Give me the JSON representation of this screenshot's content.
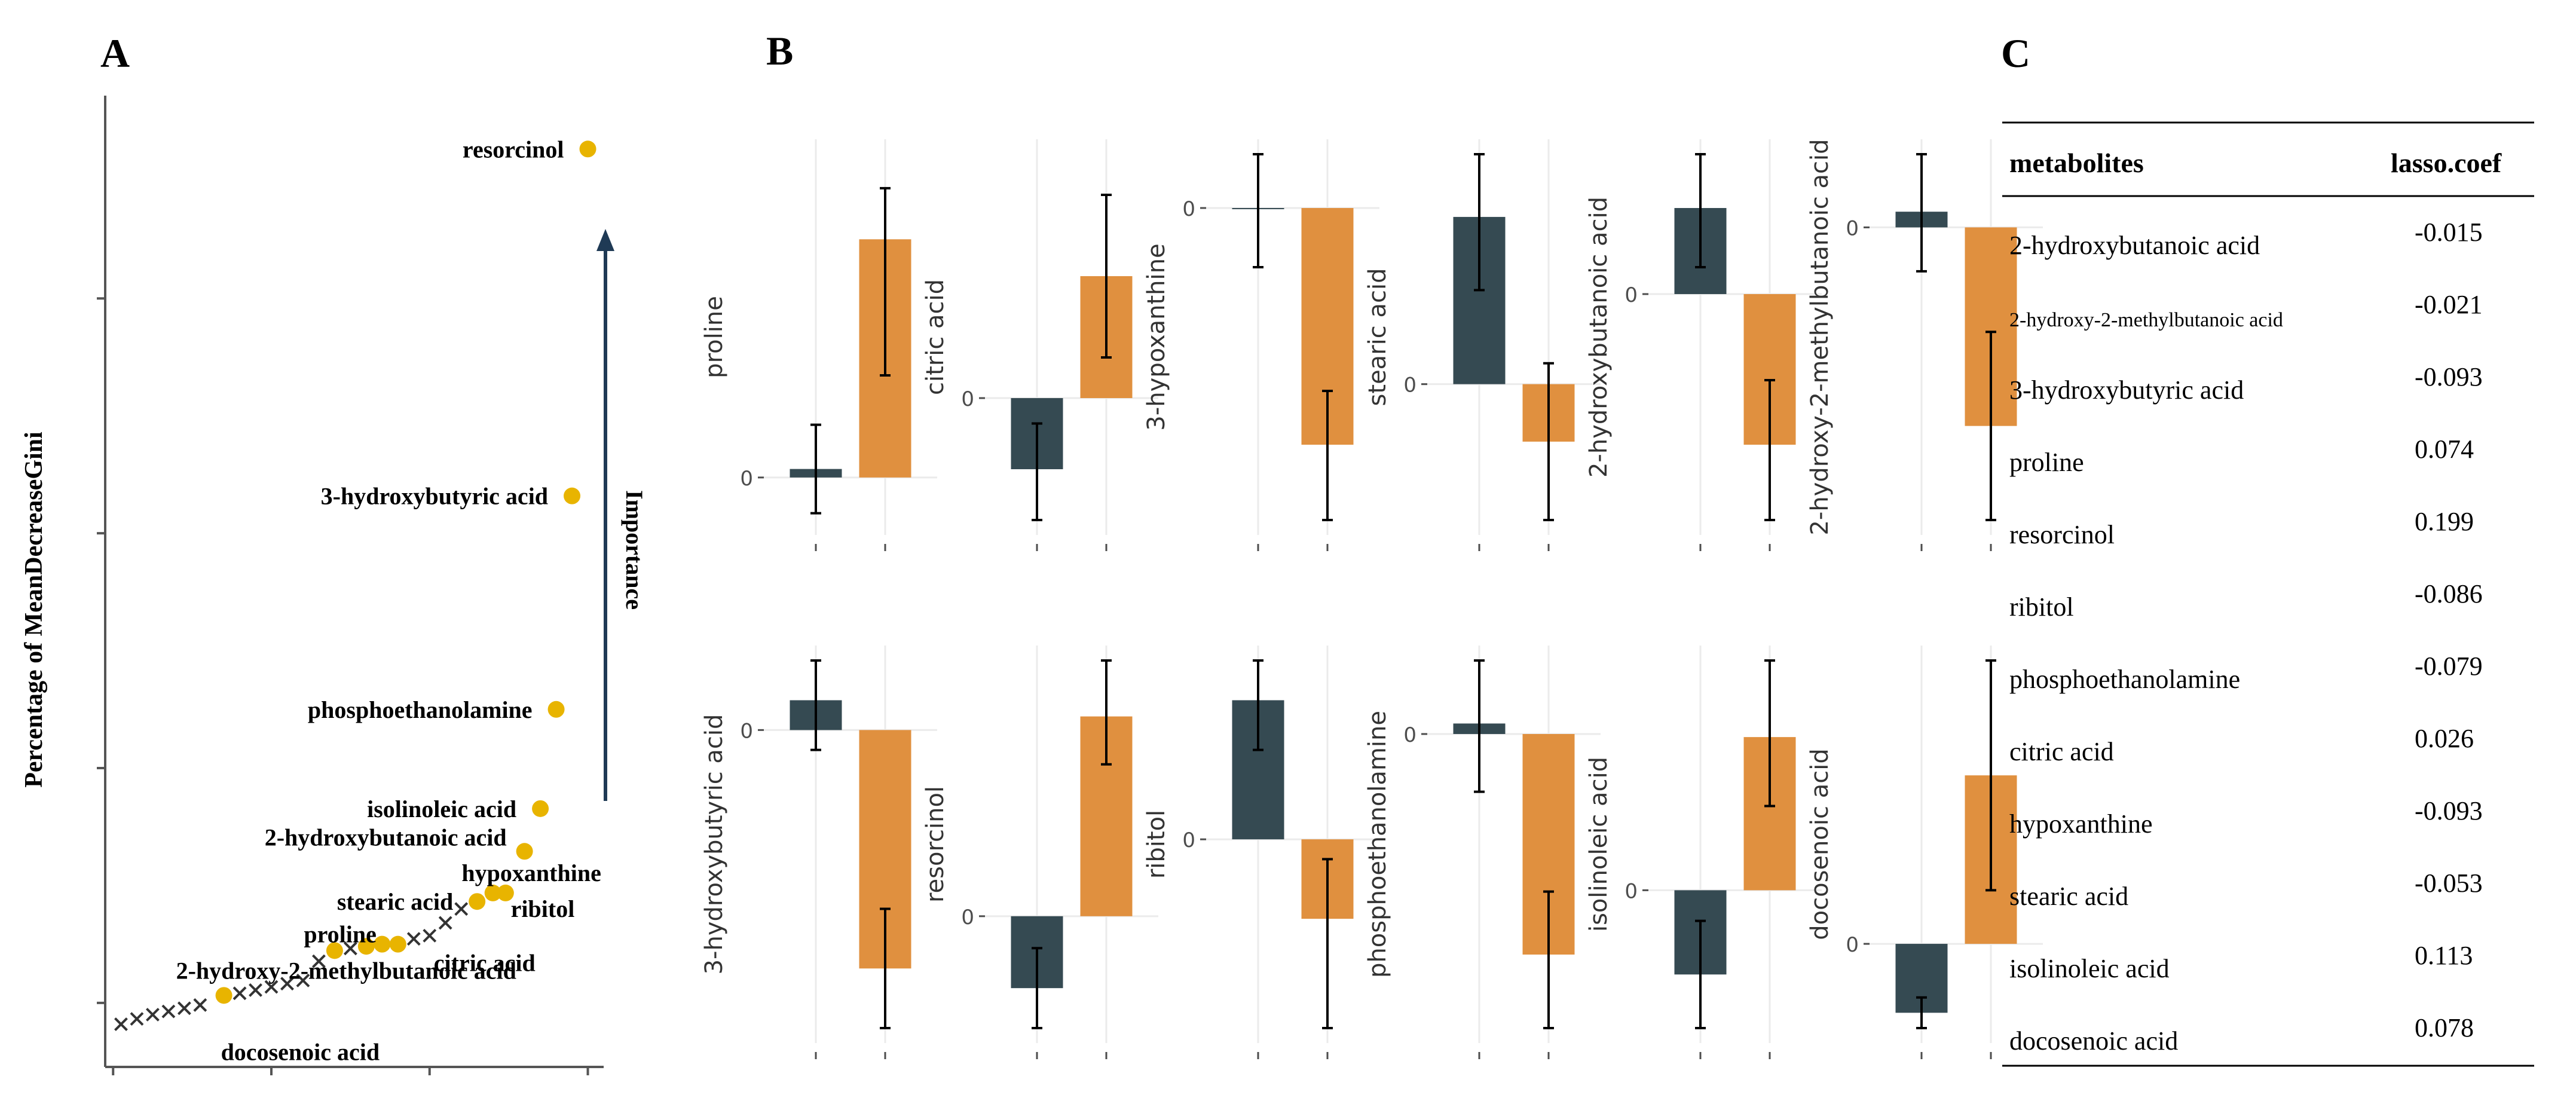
{
  "chart_data": [
    {
      "panel_label": "A",
      "type": "scatter",
      "ylabel": "Percentage of MeanDecreaseGini",
      "annotation": "Importance",
      "colors": {
        "selected": "#E8B400",
        "unselected": "#333333",
        "axis": "#555555",
        "arrow": "#1F3A55"
      },
      "labeled_points": [
        {
          "label": "resorcinol",
          "x": 30.0,
          "y": 90.0
        },
        {
          "label": "3-hydroxybutyric acid",
          "x": 29.0,
          "y": 57.5
        },
        {
          "label": "phosphoethanolamine",
          "x": 28.0,
          "y": 37.5
        },
        {
          "label": "isolinoleic acid",
          "x": 27.0,
          "y": 28.2
        },
        {
          "label": "2-hydroxybutanoic acid",
          "x": 26.0,
          "y": 24.2
        },
        {
          "label": "hypoxanthine",
          "x": 24.8,
          "y": 20.3
        },
        {
          "label": "ribitol",
          "x": 24.0,
          "y": 20.3
        },
        {
          "label": "stearic acid",
          "x": 23.0,
          "y": 19.5
        },
        {
          "label": "citric acid",
          "x": 18.0,
          "y": 15.5
        },
        {
          "label": "proline",
          "x": 14.0,
          "y": 14.9
        },
        {
          "label": "2-hydroxy-2-methylbutanoic acid",
          "x": 7.0,
          "y": 10.7
        }
      ],
      "other_selected_points": [
        {
          "x": 17.0,
          "y": 15.5
        },
        {
          "x": 16.0,
          "y": 15.3
        }
      ],
      "unselected_points": [
        {
          "x": 0.5,
          "y": 8.0
        },
        {
          "x": 1.5,
          "y": 8.5
        },
        {
          "x": 2.5,
          "y": 8.9
        },
        {
          "x": 3.5,
          "y": 9.2
        },
        {
          "x": 4.5,
          "y": 9.5
        },
        {
          "x": 5.5,
          "y": 9.8
        },
        {
          "x": 8.0,
          "y": 10.9
        },
        {
          "x": 9.0,
          "y": 11.2
        },
        {
          "x": 10.0,
          "y": 11.5
        },
        {
          "x": 11.0,
          "y": 11.8
        },
        {
          "x": 12.0,
          "y": 12.1
        },
        {
          "x": 13.0,
          "y": 13.9
        },
        {
          "x": 15.0,
          "y": 15.1
        },
        {
          "x": 19.0,
          "y": 16.0
        },
        {
          "x": 20.0,
          "y": 16.3
        },
        {
          "x": 21.0,
          "y": 17.5
        },
        {
          "x": 22.0,
          "y": 18.8
        }
      ],
      "extra_labels": [
        {
          "label": "docosenoic acid",
          "x": 7.0,
          "y": 8.0
        }
      ],
      "xlim": [
        -0.5,
        31
      ],
      "ylim": [
        4,
        95
      ],
      "xticks": [
        0,
        10,
        20,
        30
      ],
      "yticks": [
        10,
        32,
        54,
        76
      ]
    },
    {
      "panel_label": "B",
      "type": "bar",
      "colors": {
        "group1": "#354A52",
        "group2": "#E0903F",
        "grid": "#EBEBEB",
        "text": "#4D4D4D"
      },
      "panels": [
        {
          "label": "proline",
          "tick": "0",
          "ylim": [
            -0.5,
            3.8
          ],
          "values": [
            0.1,
            2.8
          ],
          "errors": [
            [
              -0.42,
              0.62
            ],
            [
              1.2,
              3.4
            ]
          ]
        },
        {
          "label": "citric acid",
          "tick": "0",
          "ylim": [
            -1.2,
            2.4
          ],
          "values": [
            -0.7,
            1.2
          ],
          "errors": [
            [
              -1.2,
              -0.25
            ],
            [
              0.4,
              2.0
            ]
          ]
        },
        {
          "label": "3-hypoxanthine",
          "tick": "0",
          "ylim": [
            -2.9,
            0.5
          ],
          "values": [
            0,
            -2.2
          ],
          "errors": [
            [
              -0.55,
              0.5
            ],
            [
              -2.9,
              -1.7
            ]
          ]
        },
        {
          "label": "stearic acid",
          "tick": "0",
          "ylim": [
            -1.3,
            2.2
          ],
          "values": [
            1.6,
            -0.55
          ],
          "errors": [
            [
              0.9,
              2.2
            ],
            [
              -1.3,
              0.2
            ]
          ]
        },
        {
          "label": "2-hydroxybutanoic acid",
          "tick": "0",
          "ylim": [
            -2.1,
            1.3
          ],
          "values": [
            0.8,
            -1.4
          ],
          "errors": [
            [
              0.25,
              1.3
            ],
            [
              -2.1,
              -0.8
            ]
          ]
        },
        {
          "label": "2-hydroxy-2-methylbutanoic acid",
          "tick": "0",
          "ylim": [
            -2.8,
            0.7
          ],
          "values": [
            0.15,
            -1.9
          ],
          "errors": [
            [
              -0.42,
              0.7
            ],
            [
              -2.8,
              -1.0
            ]
          ]
        },
        {
          "label": "3-hydroxybutyric acid",
          "tick": "0",
          "ylim": [
            -3.0,
            0.7
          ],
          "values": [
            0.3,
            -2.4
          ],
          "errors": [
            [
              -0.2,
              0.7
            ],
            [
              -3.0,
              -1.8
            ]
          ]
        },
        {
          "label": "resorcinol",
          "tick": "0",
          "ylim": [
            -1.4,
            3.2
          ],
          "values": [
            -0.9,
            2.5
          ],
          "errors": [
            [
              -1.4,
              -0.4
            ],
            [
              1.9,
              3.2
            ]
          ]
        },
        {
          "label": "ribitol",
          "tick": "0",
          "ylim": [
            -1.9,
            1.8
          ],
          "values": [
            1.4,
            -0.8
          ],
          "errors": [
            [
              0.9,
              1.8
            ],
            [
              -1.9,
              -0.2
            ]
          ]
        },
        {
          "label": "phosphoethanolamine",
          "tick": "0",
          "ylim": [
            -2.8,
            0.7
          ],
          "values": [
            0.1,
            -2.1
          ],
          "errors": [
            [
              -0.55,
              0.7
            ],
            [
              -2.8,
              -1.5
            ]
          ]
        },
        {
          "label": "isolinoleic acid",
          "tick": "0",
          "ylim": [
            -1.8,
            3.0
          ],
          "values": [
            -1.1,
            2.0
          ],
          "errors": [
            [
              -1.8,
              -0.4
            ],
            [
              1.1,
              3.0
            ]
          ]
        },
        {
          "label": "docosenoic acid",
          "tick": "0",
          "ylim": [
            -1.1,
            3.7
          ],
          "values": [
            -0.9,
            2.2
          ],
          "errors": [
            [
              -1.1,
              -0.7
            ],
            [
              0.7,
              3.7
            ]
          ]
        }
      ]
    },
    {
      "panel_label": "C",
      "type": "table",
      "columns": [
        "metabolites",
        "lasso.coef"
      ],
      "rows": [
        {
          "metabolite": "2-hydroxybutanoic acid",
          "coef": "-0.015"
        },
        {
          "metabolite": "2-hydroxy-2-methylbutanoic acid",
          "coef": "-0.021"
        },
        {
          "metabolite": "3-hydroxybutyric acid",
          "coef": "-0.093"
        },
        {
          "metabolite": "proline",
          "coef": "0.074"
        },
        {
          "metabolite": "resorcinol",
          "coef": "0.199"
        },
        {
          "metabolite": "ribitol",
          "coef": "-0.086"
        },
        {
          "metabolite": "phosphoethanolamine",
          "coef": "-0.079"
        },
        {
          "metabolite": "citric acid",
          "coef": "0.026"
        },
        {
          "metabolite": "hypoxanthine",
          "coef": "-0.093"
        },
        {
          "metabolite": "stearic acid",
          "coef": "-0.053"
        },
        {
          "metabolite": "isolinoleic acid",
          "coef": "0.113"
        },
        {
          "metabolite": "docosenoic acid",
          "coef": "0.078"
        }
      ]
    }
  ]
}
